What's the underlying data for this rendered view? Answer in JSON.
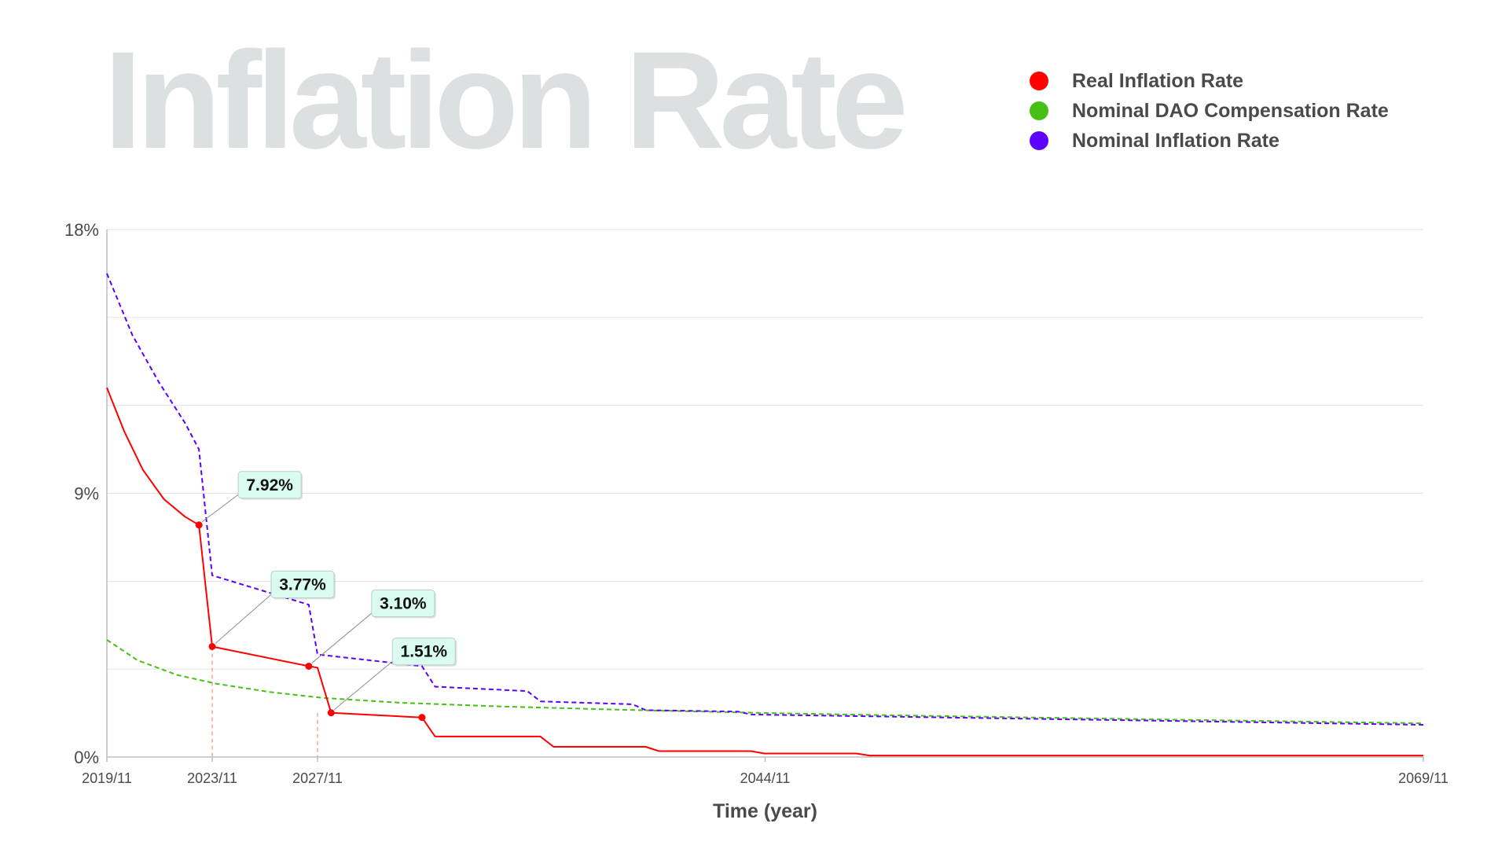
{
  "chart_data": {
    "type": "line",
    "title": "Inflation Rate",
    "xlabel": "Time (year)",
    "ylabel": "",
    "ylim": [
      0,
      18
    ],
    "xlim": [
      2019.833,
      2069.833
    ],
    "y_ticks": [
      {
        "value": 0,
        "label": "0%"
      },
      {
        "value": 9,
        "label": "9%"
      },
      {
        "value": 18,
        "label": "18%"
      }
    ],
    "x_ticks": [
      {
        "value": 2019.833,
        "label": "2019/11"
      },
      {
        "value": 2023.833,
        "label": "2023/11"
      },
      {
        "value": 2027.833,
        "label": "2027/11"
      },
      {
        "value": 2044.833,
        "label": "2044/11"
      },
      {
        "value": 2069.833,
        "label": "2069/11"
      }
    ],
    "grid": true,
    "legend_position": "top-right",
    "series": [
      {
        "name": "Real Inflation Rate",
        "color": "#ff0000",
        "style": "solid",
        "points": [
          [
            2019.833,
            12.6
          ],
          [
            2020.5,
            11.1
          ],
          [
            2021.2,
            9.8
          ],
          [
            2022.0,
            8.8
          ],
          [
            2022.8,
            8.2
          ],
          [
            2023.33,
            7.92
          ],
          [
            2023.833,
            3.77
          ],
          [
            2027.5,
            3.1
          ],
          [
            2027.833,
            3.05
          ],
          [
            2028.35,
            1.51
          ],
          [
            2031.8,
            1.35
          ],
          [
            2032.3,
            0.7
          ],
          [
            2036.3,
            0.7
          ],
          [
            2036.8,
            0.35
          ],
          [
            2040.3,
            0.35
          ],
          [
            2040.8,
            0.2
          ],
          [
            2044.3,
            0.2
          ],
          [
            2044.8,
            0.12
          ],
          [
            2048.3,
            0.12
          ],
          [
            2048.8,
            0.05
          ],
          [
            2069.833,
            0.05
          ]
        ]
      },
      {
        "name": "Nominal DAO Compensation Rate",
        "color": "#44c114",
        "style": "dashed",
        "points": [
          [
            2019.833,
            4.0
          ],
          [
            2021.0,
            3.3
          ],
          [
            2022.5,
            2.8
          ],
          [
            2024.0,
            2.5
          ],
          [
            2026.0,
            2.22
          ],
          [
            2028.0,
            2.02
          ],
          [
            2031.0,
            1.85
          ],
          [
            2035.0,
            1.72
          ],
          [
            2040.0,
            1.6
          ],
          [
            2045.0,
            1.5
          ],
          [
            2050.0,
            1.42
          ],
          [
            2055.0,
            1.35
          ],
          [
            2060.0,
            1.28
          ],
          [
            2069.833,
            1.15
          ]
        ]
      },
      {
        "name": "Nominal Inflation Rate",
        "color": "#5c00ff",
        "style": "dashed",
        "points": [
          [
            2019.833,
            16.5
          ],
          [
            2020.8,
            14.4
          ],
          [
            2021.8,
            12.8
          ],
          [
            2022.8,
            11.4
          ],
          [
            2023.33,
            10.5
          ],
          [
            2023.833,
            6.2
          ],
          [
            2027.5,
            5.2
          ],
          [
            2027.833,
            3.5
          ],
          [
            2031.8,
            3.1
          ],
          [
            2032.3,
            2.4
          ],
          [
            2035.8,
            2.25
          ],
          [
            2036.3,
            1.9
          ],
          [
            2039.8,
            1.8
          ],
          [
            2040.3,
            1.6
          ],
          [
            2043.8,
            1.55
          ],
          [
            2044.3,
            1.45
          ],
          [
            2069.833,
            1.1
          ]
        ]
      }
    ],
    "markers": [
      {
        "x": 2023.33,
        "y": 7.92
      },
      {
        "x": 2023.833,
        "y": 3.77
      },
      {
        "x": 2027.5,
        "y": 3.1
      },
      {
        "x": 2028.35,
        "y": 1.51
      },
      {
        "x": 2031.8,
        "y": 1.35
      }
    ],
    "annotations": [
      {
        "label": "7.92%",
        "x": 2023.33,
        "y": 7.92
      },
      {
        "label": "3.77%",
        "x": 2023.833,
        "y": 3.77
      },
      {
        "label": "3.10%",
        "x": 2027.5,
        "y": 3.1
      },
      {
        "label": "1.51%",
        "x": 2028.35,
        "y": 1.51
      }
    ],
    "vertical_guides": [
      2023.833,
      2027.833
    ]
  }
}
